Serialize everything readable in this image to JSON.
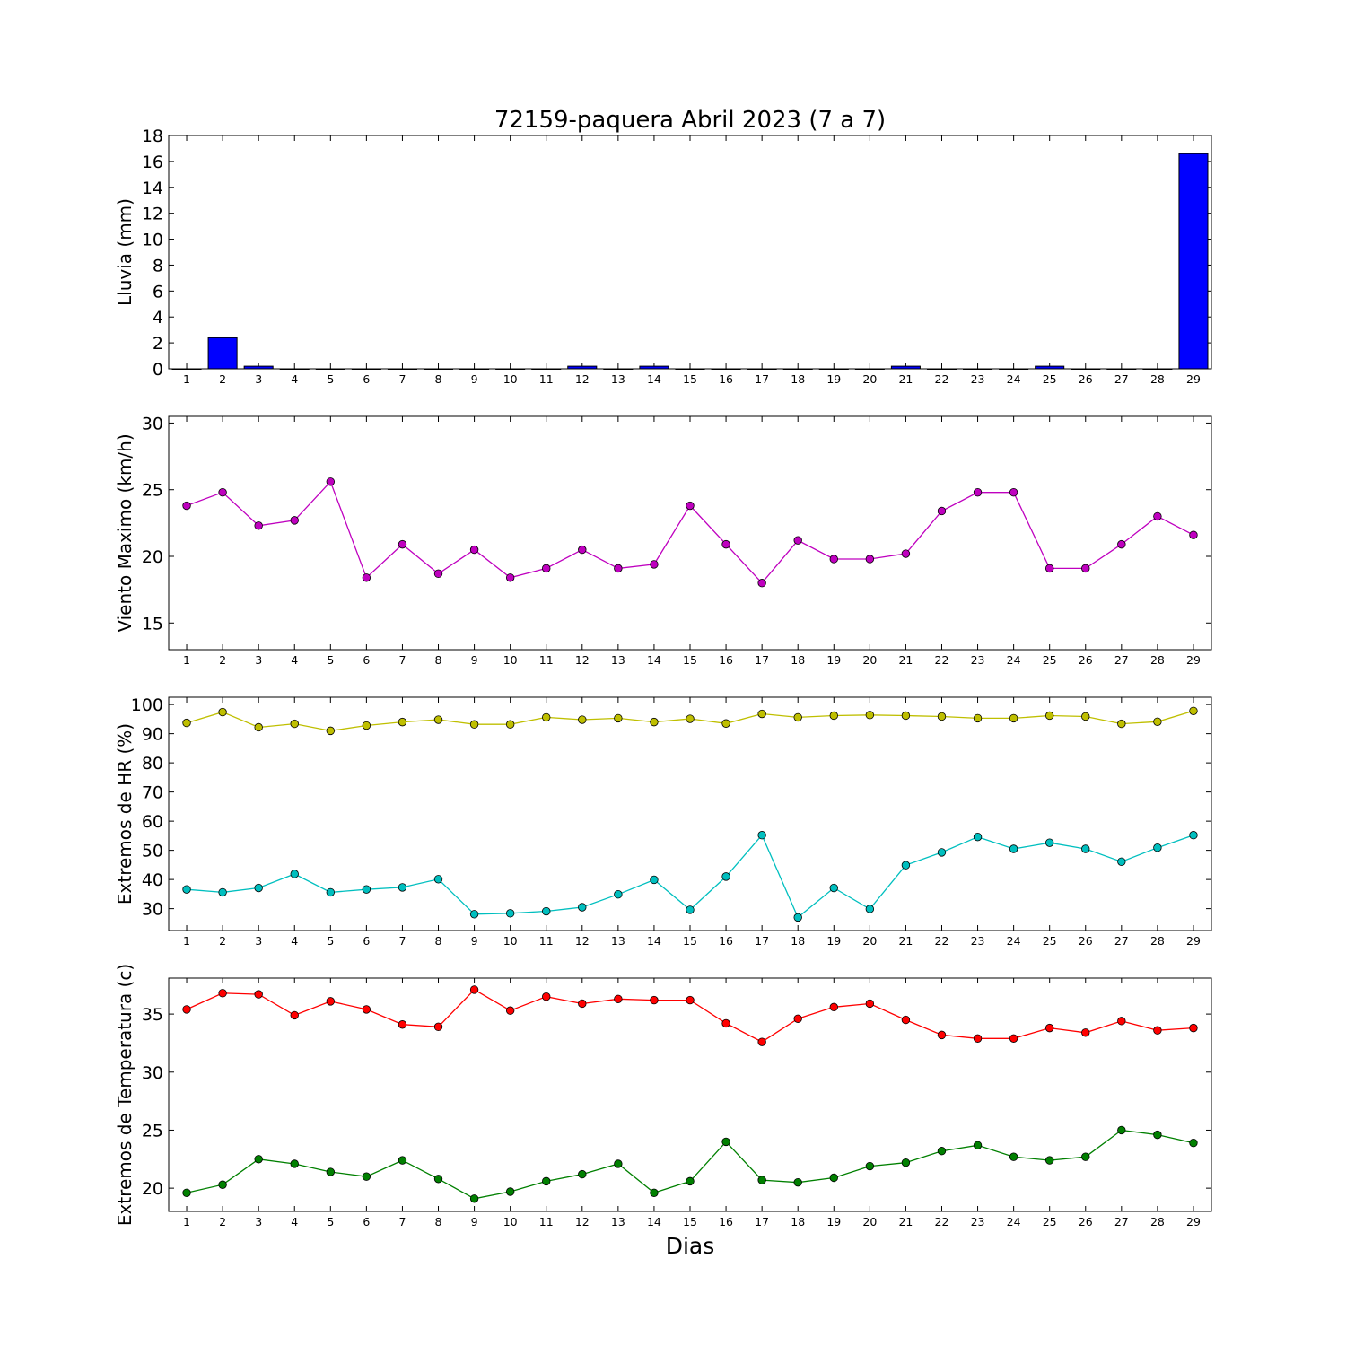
{
  "figure": {
    "title": "72159-paquera Abril 2023  (7 a 7)",
    "xlabel": "Dias"
  },
  "chart_data": [
    {
      "type": "bar",
      "ylabel": "Lluvia (mm)",
      "ylim": [
        0,
        18
      ],
      "yticks": [
        0,
        2,
        4,
        6,
        8,
        10,
        12,
        14,
        16,
        18
      ],
      "xlim": [
        0.5,
        29.5
      ],
      "categories": [
        1,
        2,
        3,
        4,
        5,
        6,
        7,
        8,
        9,
        10,
        11,
        12,
        13,
        14,
        15,
        16,
        17,
        18,
        19,
        20,
        21,
        22,
        23,
        24,
        25,
        26,
        27,
        28,
        29
      ],
      "series": [
        {
          "color": "#0000ff",
          "values": [
            0,
            2.4,
            0.2,
            0,
            0,
            0,
            0,
            0,
            0,
            0,
            0,
            0.2,
            0,
            0.2,
            0,
            0,
            0,
            0,
            0,
            0,
            0.2,
            0,
            0,
            0,
            0.2,
            0,
            0,
            0,
            16.6
          ]
        }
      ]
    },
    {
      "type": "line",
      "ylabel": "Viento Maximo (km/h)",
      "ylim": [
        13,
        30.5
      ],
      "yticks": [
        15,
        20,
        25,
        30
      ],
      "xlim": [
        0.5,
        29.5
      ],
      "categories": [
        1,
        2,
        3,
        4,
        5,
        6,
        7,
        8,
        9,
        10,
        11,
        12,
        13,
        14,
        15,
        16,
        17,
        18,
        19,
        20,
        21,
        22,
        23,
        24,
        25,
        26,
        27,
        28,
        29
      ],
      "series": [
        {
          "color": "#bf00bf",
          "values": [
            23.8,
            24.8,
            22.3,
            22.7,
            25.6,
            18.4,
            20.9,
            18.7,
            20.5,
            18.4,
            19.1,
            20.5,
            19.1,
            19.4,
            23.8,
            20.9,
            18.0,
            21.2,
            19.8,
            19.8,
            20.2,
            23.4,
            24.8,
            24.8,
            19.1,
            19.1,
            20.9,
            23.0,
            21.6
          ]
        }
      ]
    },
    {
      "type": "line",
      "ylabel": "Extremos de HR (%)",
      "ylim": [
        22.5,
        102.5
      ],
      "yticks": [
        30,
        40,
        50,
        60,
        70,
        80,
        90,
        100
      ],
      "xlim": [
        0.5,
        29.5
      ],
      "categories": [
        1,
        2,
        3,
        4,
        5,
        6,
        7,
        8,
        9,
        10,
        11,
        12,
        13,
        14,
        15,
        16,
        17,
        18,
        19,
        20,
        21,
        22,
        23,
        24,
        25,
        26,
        27,
        28,
        29
      ],
      "series": [
        {
          "color": "#bfbf00",
          "values": [
            93.7,
            97.4,
            92.2,
            93.4,
            91.0,
            92.8,
            94.0,
            94.8,
            93.2,
            93.2,
            95.6,
            94.8,
            95.3,
            94.0,
            95.1,
            93.5,
            96.8,
            95.6,
            96.2,
            96.4,
            96.2,
            95.9,
            95.3,
            95.3,
            96.2,
            95.9,
            93.4,
            94.1,
            97.8
          ]
        },
        {
          "color": "#00bfbf",
          "values": [
            36.6,
            35.6,
            37.1,
            41.9,
            35.6,
            36.6,
            37.3,
            40.1,
            28.1,
            28.4,
            29.1,
            30.5,
            34.9,
            39.9,
            29.6,
            41.0,
            55.2,
            27.0,
            37.1,
            29.9,
            44.9,
            49.3,
            54.6,
            50.5,
            52.6,
            50.5,
            46.1,
            50.9,
            55.2
          ]
        }
      ]
    },
    {
      "type": "line",
      "ylabel": "Extremos de Temperatura (c)",
      "ylim": [
        18,
        38.1
      ],
      "yticks": [
        20,
        25,
        30,
        35
      ],
      "xlim": [
        0.5,
        29.5
      ],
      "categories": [
        1,
        2,
        3,
        4,
        5,
        6,
        7,
        8,
        9,
        10,
        11,
        12,
        13,
        14,
        15,
        16,
        17,
        18,
        19,
        20,
        21,
        22,
        23,
        24,
        25,
        26,
        27,
        28,
        29
      ],
      "series": [
        {
          "color": "#ff0000",
          "values": [
            35.4,
            36.8,
            36.7,
            34.9,
            36.1,
            35.4,
            34.1,
            33.9,
            37.1,
            35.3,
            36.5,
            35.9,
            36.3,
            36.2,
            36.2,
            34.2,
            32.6,
            34.6,
            35.6,
            35.9,
            34.5,
            33.2,
            32.9,
            32.9,
            33.8,
            33.4,
            34.4,
            33.6,
            33.8
          ]
        },
        {
          "color": "#008000",
          "values": [
            19.6,
            20.3,
            22.5,
            22.1,
            21.4,
            21.0,
            22.4,
            20.8,
            19.1,
            19.7,
            20.6,
            21.2,
            22.1,
            19.6,
            20.6,
            24.0,
            20.7,
            20.5,
            20.9,
            21.9,
            22.2,
            23.2,
            23.7,
            22.7,
            22.4,
            22.7,
            25.0,
            24.6,
            23.9
          ]
        }
      ]
    }
  ]
}
